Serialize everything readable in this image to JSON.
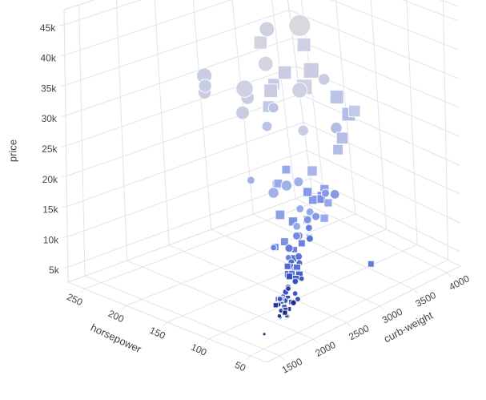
{
  "figure": {
    "kind": "3d-scatter-plot",
    "background_color": "#ffffff",
    "grid_color": "#e3e4e8",
    "label_color": "#444444"
  },
  "chart_data": {
    "type": "scatter",
    "subtype": "scatter3d",
    "axes": {
      "x": {
        "title": "horsepower",
        "tick_labels": [
          "250",
          "200",
          "150",
          "100",
          "50"
        ],
        "tick_values": [
          250,
          200,
          150,
          100,
          50
        ],
        "range": [
          270,
          30
        ]
      },
      "y": {
        "title": "curb-weight",
        "tick_labels": [
          "1500",
          "2000",
          "2500",
          "3000",
          "3500",
          "4000"
        ],
        "tick_values": [
          1500,
          2000,
          2500,
          3000,
          3500,
          4000
        ],
        "range": [
          1300,
          4200
        ]
      },
      "z": {
        "title": "price",
        "tick_labels": [
          "5k",
          "10k",
          "15k",
          "20k",
          "25k",
          "30k",
          "35k",
          "40k",
          "45k"
        ],
        "tick_values": [
          5000,
          10000,
          15000,
          20000,
          25000,
          30000,
          35000,
          40000,
          45000
        ],
        "range": [
          2500,
          47500
        ]
      }
    },
    "marker_encoding": {
      "symbols": [
        "circle",
        "square"
      ],
      "size_field": "engine-size",
      "size_range": [
        61,
        326
      ],
      "color_field": "highway-mpg",
      "colorscale": [
        [
          16,
          "#d8d8de"
        ],
        [
          20,
          "#c4c9e6"
        ],
        [
          24,
          "#9fb0ea"
        ],
        [
          28,
          "#7b92e3"
        ],
        [
          32,
          "#5a74d8"
        ],
        [
          38,
          "#3952c0"
        ],
        [
          46,
          "#25379f"
        ],
        [
          54,
          "#19297f"
        ]
      ],
      "stroke": "#ffffff"
    },
    "point_fields": [
      "horsepower",
      "curb-weight",
      "price",
      "symbol",
      "engine-size",
      "highway-mpg"
    ],
    "points": [
      [
        48,
        1488,
        5151,
        1,
        61,
        53
      ],
      [
        60,
        1874,
        6295,
        0,
        90,
        42
      ],
      [
        56,
        1909,
        5499,
        0,
        79,
        47
      ],
      [
        69,
        1900,
        6575,
        1,
        92,
        46
      ],
      [
        62,
        1967,
        6189,
        0,
        90,
        43
      ],
      [
        58,
        1837,
        5572,
        0,
        79,
        47
      ],
      [
        60,
        1940,
        6095,
        1,
        90,
        43
      ],
      [
        62,
        2050,
        6795,
        1,
        97,
        46
      ],
      [
        52,
        1758,
        6479,
        0,
        80,
        50
      ],
      [
        70,
        1945,
        7295,
        1,
        92,
        41
      ],
      [
        68,
        1950,
        7395,
        0,
        97,
        38
      ],
      [
        58,
        1965,
        6189,
        1,
        85,
        46
      ],
      [
        62,
        2140,
        6669,
        0,
        98,
        38
      ],
      [
        56,
        2010,
        7099,
        0,
        103,
        50
      ],
      [
        60,
        1918,
        5572,
        0,
        90,
        41
      ],
      [
        69,
        2074,
        6849,
        1,
        92,
        40
      ],
      [
        55,
        1874,
        6229,
        1,
        90,
        54
      ],
      [
        70,
        2015,
        7349,
        0,
        92,
        38
      ],
      [
        70,
        1989,
        6649,
        1,
        92,
        38
      ],
      [
        68,
        2169,
        7129,
        0,
        97,
        37
      ],
      [
        68,
        1971,
        7299,
        1,
        97,
        37
      ],
      [
        68,
        2028,
        6692,
        0,
        97,
        37
      ],
      [
        60,
        2024,
        6938,
        1,
        92,
        41
      ],
      [
        76,
        2122,
        7198,
        0,
        108,
        39
      ],
      [
        69,
        1938,
        6488,
        0,
        92,
        46
      ],
      [
        68,
        1951,
        7463,
        1,
        97,
        37
      ],
      [
        62,
        1945,
        6399,
        1,
        91,
        42
      ],
      [
        56,
        1918,
        5389,
        0,
        90,
        50
      ],
      [
        76,
        2261,
        8238,
        0,
        108,
        38
      ],
      [
        84,
        2300,
        8921,
        1,
        108,
        32
      ],
      [
        70,
        2094,
        8249,
        0,
        98,
        43
      ],
      [
        88,
        2395,
        8845,
        0,
        122,
        32
      ],
      [
        85,
        2275,
        8495,
        1,
        110,
        39
      ],
      [
        68,
        2265,
        9095,
        0,
        97,
        37
      ],
      [
        88,
        2290,
        8645,
        1,
        122,
        32
      ],
      [
        84,
        2385,
        8495,
        1,
        108,
        32
      ],
      [
        92,
        2380,
        9960,
        0,
        110,
        34
      ],
      [
        76,
        2158,
        7788,
        0,
        108,
        39
      ],
      [
        82,
        2328,
        7957,
        1,
        121,
        36
      ],
      [
        90,
        2385,
        9233,
        0,
        122,
        32
      ],
      [
        86,
        2395,
        9258,
        1,
        122,
        33
      ],
      [
        92,
        2326,
        9538,
        1,
        110,
        34
      ],
      [
        88,
        2410,
        8949,
        0,
        122,
        32
      ],
      [
        82,
        2385,
        8358,
        1,
        121,
        36
      ],
      [
        92,
        2480,
        9995,
        0,
        110,
        33
      ],
      [
        94,
        2425,
        10245,
        1,
        122,
        33
      ],
      [
        88,
        2443,
        10795,
        0,
        122,
        32
      ],
      [
        85,
        2420,
        9988,
        0,
        110,
        34
      ],
      [
        95,
        2372,
        10595,
        0,
        108,
        30
      ],
      [
        102,
        2634,
        11245,
        1,
        120,
        30
      ],
      [
        110,
        2679,
        11850,
        0,
        134,
        29
      ],
      [
        88,
        2605,
        12945,
        0,
        122,
        32
      ],
      [
        116,
        2540,
        11248,
        1,
        131,
        28
      ],
      [
        95,
        2458,
        11499,
        1,
        108,
        30
      ],
      [
        111,
        2337,
        11595,
        0,
        109,
        30
      ],
      [
        97,
        2405,
        11900,
        0,
        134,
        31
      ],
      [
        95,
        2670,
        12440,
        1,
        108,
        29
      ],
      [
        102,
        2740,
        13295,
        0,
        120,
        30
      ],
      [
        110,
        2800,
        13950,
        1,
        134,
        28
      ],
      [
        101,
        2556,
        12964,
        0,
        131,
        29
      ],
      [
        121,
        2714,
        13495,
        1,
        146,
        28
      ],
      [
        110,
        2920,
        13845,
        0,
        134,
        27
      ],
      [
        112,
        2372,
        11450,
        1,
        122,
        28
      ],
      [
        116,
        2714,
        12940,
        0,
        131,
        25
      ],
      [
        100,
        2937,
        13999,
        1,
        136,
        25
      ],
      [
        145,
        2778,
        12999,
        1,
        151,
        26
      ],
      [
        116,
        2900,
        14399,
        0,
        131,
        25
      ],
      [
        101,
        2714,
        14869,
        0,
        131,
        28
      ],
      [
        110,
        3095,
        15250,
        1,
        134,
        25
      ],
      [
        114,
        3042,
        15985,
        1,
        141,
        28
      ],
      [
        114,
        3045,
        16515,
        1,
        141,
        28
      ],
      [
        121,
        3157,
        16695,
        1,
        146,
        26
      ],
      [
        110,
        3062,
        17075,
        0,
        134,
        27
      ],
      [
        162,
        3045,
        18420,
        1,
        141,
        25
      ],
      [
        160,
        2912,
        16845,
        1,
        141,
        25
      ],
      [
        134,
        2935,
        18399,
        0,
        156,
        24
      ],
      [
        106,
        3151,
        16630,
        0,
        152,
        27
      ],
      [
        123,
        2945,
        17199,
        1,
        146,
        27
      ],
      [
        155,
        2975,
        16430,
        0,
        171,
        24
      ],
      [
        156,
        2808,
        15998,
        0,
        171,
        24
      ],
      [
        145,
        3230,
        18150,
        1,
        161,
        23
      ],
      [
        116,
        2765,
        15645,
        0,
        131,
        25
      ],
      [
        123,
        3016,
        15510,
        1,
        146,
        27
      ],
      [
        175,
        2700,
        17669,
        0,
        130,
        24
      ],
      [
        162,
        2910,
        16558,
        1,
        141,
        25
      ],
      [
        135,
        3495,
        20970,
        1,
        164,
        22
      ],
      [
        52,
        3100,
        7898,
        1,
        110,
        31
      ],
      [
        176,
        2954,
        25552,
        0,
        164,
        21
      ],
      [
        176,
        3053,
        28248,
        0,
        164,
        21
      ],
      [
        182,
        3045,
        28176,
        1,
        183,
        20
      ],
      [
        182,
        3130,
        31600,
        1,
        183,
        20
      ],
      [
        155,
        3230,
        24565,
        0,
        171,
        19
      ],
      [
        184,
        3105,
        30500,
        1,
        209,
        19
      ],
      [
        145,
        3580,
        23750,
        0,
        183,
        22
      ],
      [
        152,
        3820,
        24565,
        1,
        209,
        22
      ],
      [
        160,
        3750,
        27500,
        1,
        209,
        21
      ],
      [
        116,
        3380,
        24560,
        1,
        183,
        22
      ],
      [
        110,
        3505,
        28898,
        1,
        183,
        20
      ],
      [
        176,
        2640,
        29400,
        0,
        209,
        19
      ],
      [
        140,
        3100,
        44000,
        0,
        320,
        16
      ],
      [
        130,
        2500,
        40800,
        0,
        230,
        17
      ],
      [
        160,
        3350,
        38500,
        1,
        209,
        18
      ],
      [
        155,
        3020,
        35550,
        1,
        205,
        19
      ],
      [
        207,
        3230,
        37028,
        1,
        203,
        17
      ],
      [
        182,
        3080,
        41315,
        0,
        230,
        18
      ],
      [
        123,
        3230,
        35056,
        0,
        183,
        19
      ],
      [
        155,
        3380,
        34184,
        1,
        234,
        19
      ],
      [
        200,
        2395,
        35550,
        0,
        234,
        19
      ],
      [
        198,
        2380,
        34028,
        0,
        203,
        19
      ],
      [
        202,
        2410,
        32528,
        0,
        203,
        19
      ],
      [
        176,
        2714,
        31600,
        0,
        209,
        19
      ],
      [
        170,
        2620,
        33900,
        0,
        260,
        18
      ],
      [
        184,
        3550,
        29000,
        1,
        234,
        18
      ],
      [
        184,
        3485,
        28750,
        0,
        234,
        18
      ]
    ]
  }
}
